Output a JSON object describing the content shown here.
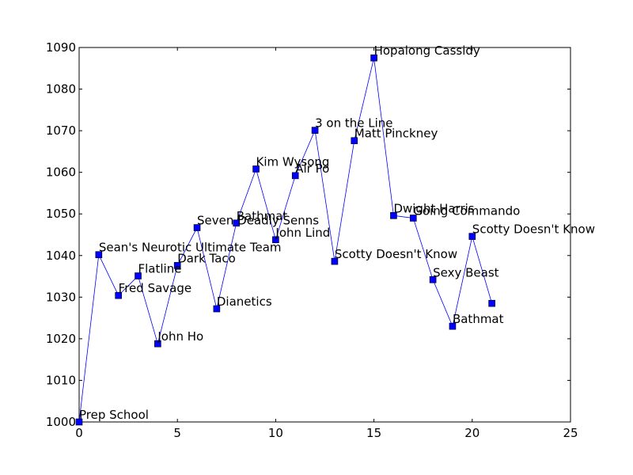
{
  "chart_data": {
    "type": "line",
    "title": "",
    "xlabel": "",
    "ylabel": "",
    "xlim": [
      0,
      25
    ],
    "ylim": [
      1000,
      1090
    ],
    "xticks": [
      0,
      5,
      10,
      15,
      20,
      25
    ],
    "yticks": [
      1000,
      1010,
      1020,
      1030,
      1040,
      1050,
      1060,
      1070,
      1080,
      1090
    ],
    "xtick_labels": [
      "0",
      "5",
      "10",
      "15",
      "20",
      "25"
    ],
    "ytick_labels": [
      "1000",
      "1010",
      "1020",
      "1030",
      "1040",
      "1050",
      "1060",
      "1070",
      "1080",
      "1090"
    ],
    "grid": false,
    "legend": false,
    "line_color": "#0000ff",
    "marker": "square",
    "marker_color": "#0000ff",
    "series": [
      {
        "x": [
          0,
          1,
          2,
          3,
          4,
          5,
          6,
          7,
          8,
          9,
          10,
          11,
          12,
          13,
          14,
          15,
          16,
          17,
          18,
          19,
          20,
          21
        ],
        "y": [
          1000,
          1040.2,
          1030.4,
          1035.1,
          1018.8,
          1037.6,
          1046.7,
          1027.2,
          1047.8,
          1060.8,
          1043.8,
          1059.2,
          1070.1,
          1038.6,
          1067.6,
          1087.5,
          1049.6,
          1049.0,
          1034.2,
          1023.0,
          1044.6,
          1028.5
        ],
        "labels": [
          "Prep School",
          "Sean's Neurotic Ultimate Team",
          "Fred Savage",
          "Flatline",
          "John Ho",
          "Dark Taco",
          "Seven Deadly Senns",
          "Dianetics",
          "Bathmat",
          "Kim Wysong",
          "John Lind",
          "Air Po",
          "3 on the Line",
          "Scotty Doesn't Know",
          "Matt Pinckney",
          "Hopalong Cassidy",
          "Dwight Harris",
          "Going Commando",
          "Sexy Beast",
          "Bathmat",
          "Scotty Doesn't Know",
          ""
        ]
      }
    ]
  }
}
